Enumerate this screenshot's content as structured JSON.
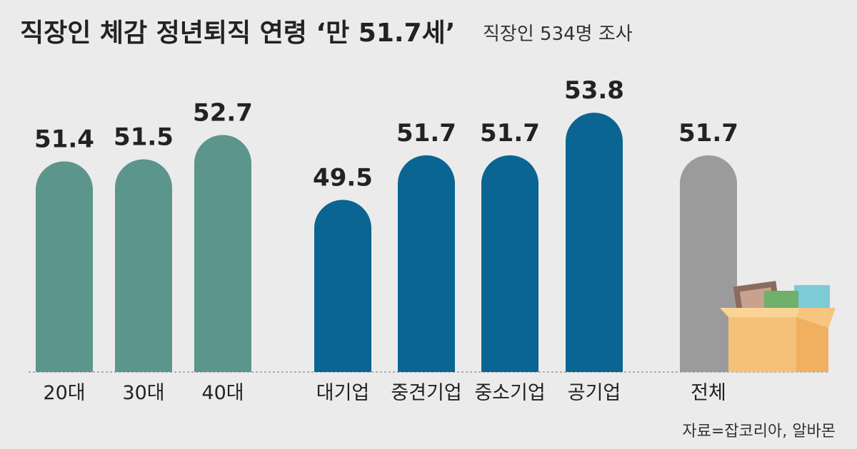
{
  "chart_data": {
    "type": "bar",
    "title": "직장인 체감 정년퇴직 연령 ‘만 51.7세’",
    "subtitle": "직장인 534명 조사",
    "categories": [
      "20대",
      "30대",
      "40대",
      "대기업",
      "중견기업",
      "중소기업",
      "공기업",
      "전체"
    ],
    "values": [
      51.4,
      51.5,
      52.7,
      49.5,
      51.7,
      51.7,
      53.8,
      51.7
    ],
    "colors": [
      "#5c958b",
      "#5c958b",
      "#5c958b",
      "#0a6592",
      "#0a6592",
      "#0a6592",
      "#0a6592",
      "#9b9b9b"
    ],
    "ylim": [
      41,
      55
    ],
    "source": "자료=잡코리아, 알바몬"
  }
}
